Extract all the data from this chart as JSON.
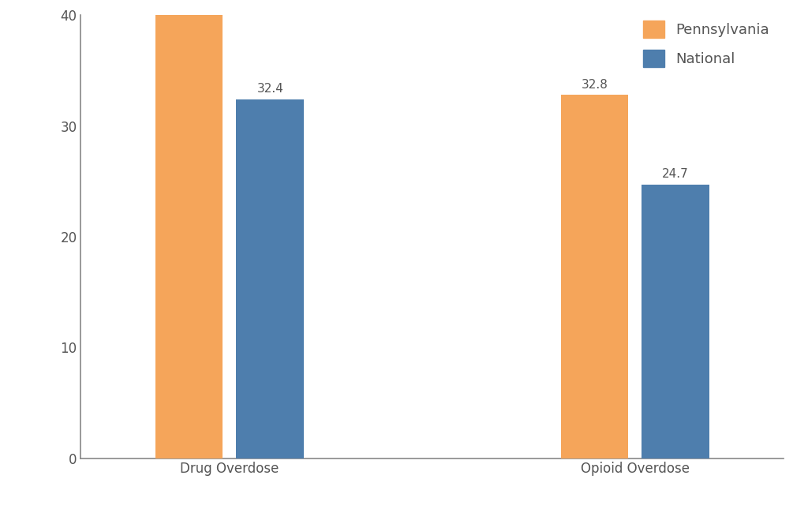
{
  "categories": [
    "Drug Overdose",
    "Opioid Overdose"
  ],
  "pennsylvania_values": [
    43.2,
    32.8
  ],
  "national_values": [
    32.4,
    24.7
  ],
  "pennsylvania_color": "#F5A55A",
  "national_color": "#4E7EAD",
  "ylim": [
    0,
    40
  ],
  "yticks": [
    0,
    10,
    20,
    30,
    40
  ],
  "bar_width": 0.25,
  "group_positions": [
    1.0,
    2.5
  ],
  "label_fontsize": 11,
  "tick_fontsize": 12,
  "legend_fontsize": 13,
  "background_color": "#ffffff",
  "axis_color": "#555555",
  "legend_entries": [
    "Pennsylvania",
    "National"
  ],
  "bar_gap": 0.05
}
